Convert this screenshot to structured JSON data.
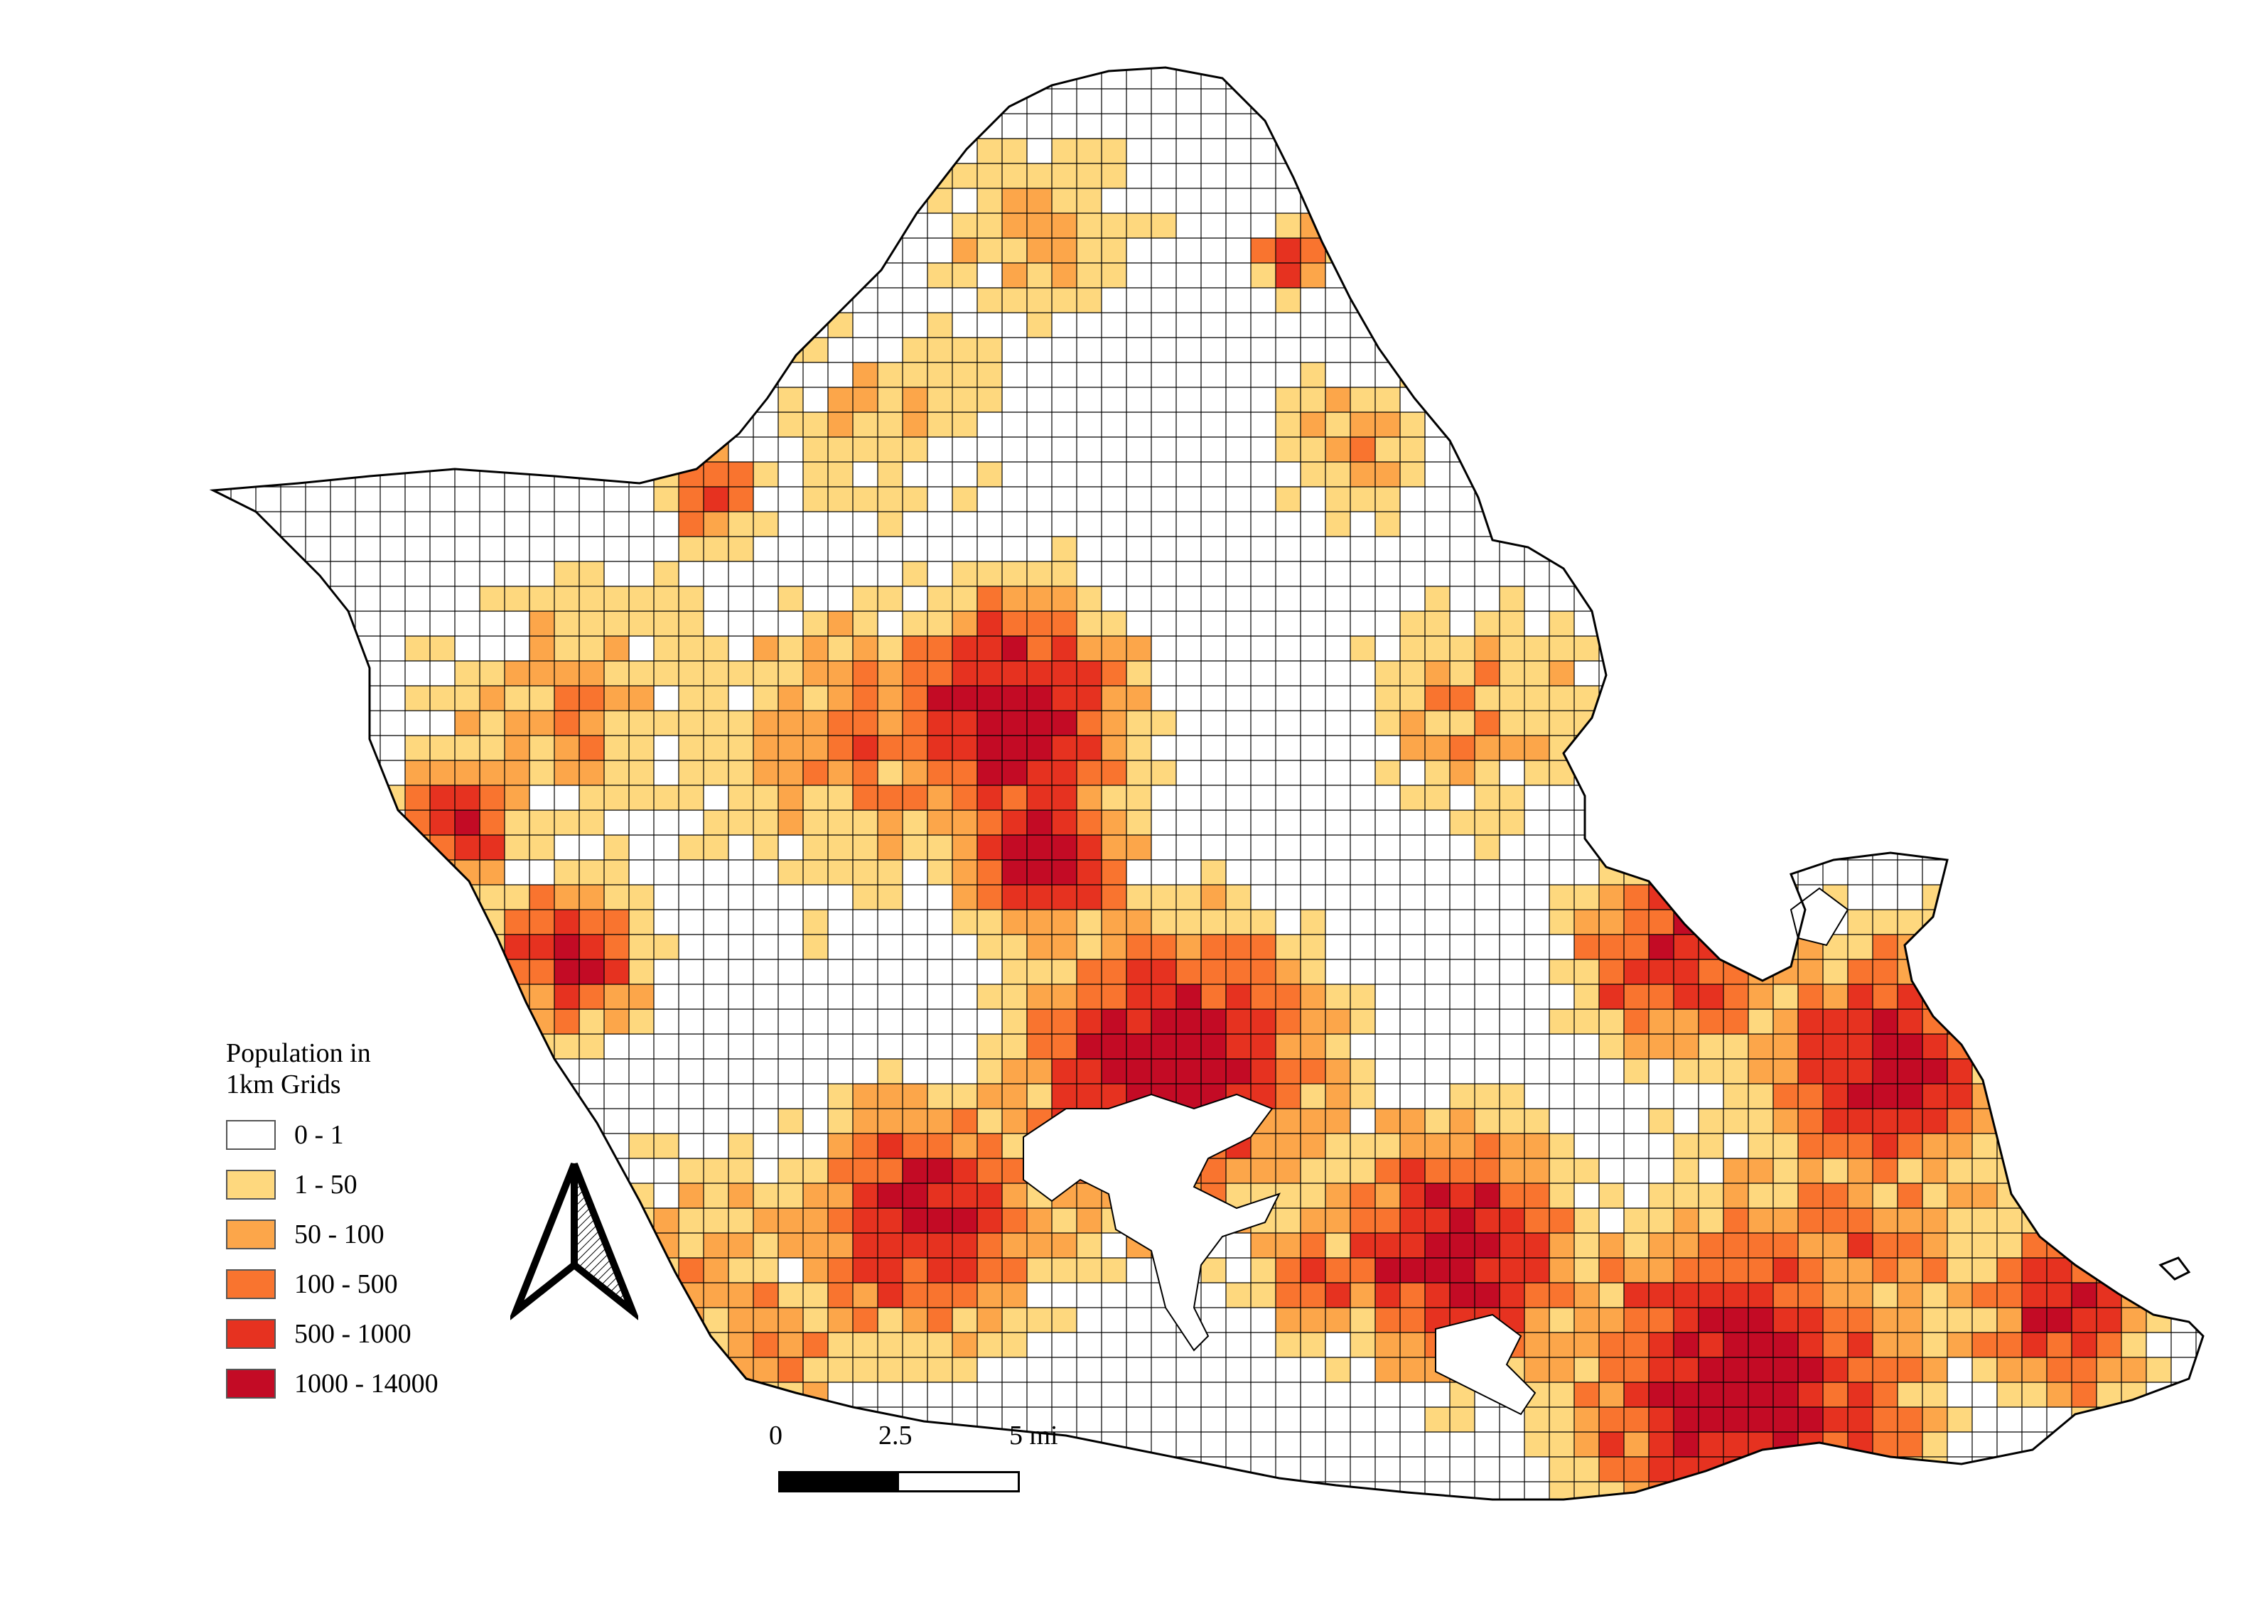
{
  "legend": {
    "title_line1": "Population in",
    "title_line2": "1km Grids",
    "classes": [
      {
        "label": "0 - 1",
        "color": "#ffffff"
      },
      {
        "label": "1 - 50",
        "color": "#fed87e"
      },
      {
        "label": "50 - 100",
        "color": "#fca64a"
      },
      {
        "label": "100 - 500",
        "color": "#f9742f"
      },
      {
        "label": "500 - 1000",
        "color": "#e63220"
      },
      {
        "label": "1000 - 14000",
        "color": "#c30b25"
      }
    ]
  },
  "scale_bar": {
    "labels": [
      "0",
      "2.5",
      "5 mi"
    ],
    "segment_colors": [
      "#000000",
      "#ffffff"
    ]
  },
  "north_arrow": {
    "icon": "north-arrow-icon"
  },
  "map": {
    "grid_cell_outline": "#000000",
    "island_outline": "#000000"
  }
}
